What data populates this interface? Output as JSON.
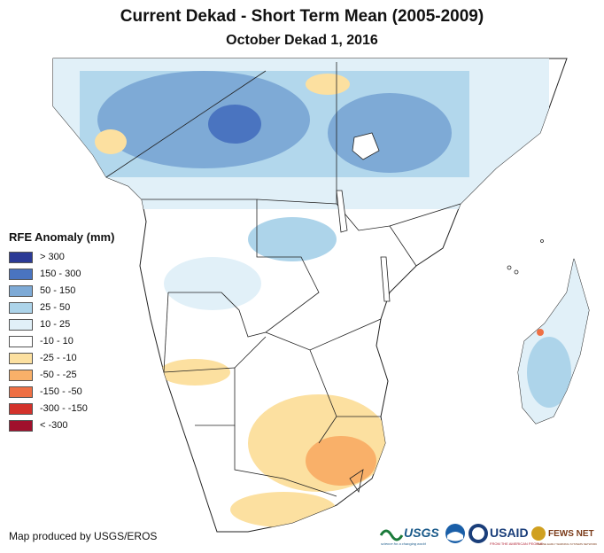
{
  "title": "Current Dekad - Short Term Mean (2005-2009)",
  "subtitle": "October Dekad 1, 2016",
  "legend": {
    "title": "RFE Anomaly (mm)",
    "items": [
      {
        "label": "> 300",
        "color": "#2b3a96"
      },
      {
        "label": "150 - 300",
        "color": "#4a74c0"
      },
      {
        "label": "50 - 150",
        "color": "#7eaad6"
      },
      {
        "label": "25 - 50",
        "color": "#add4ea"
      },
      {
        "label": "10 - 25",
        "color": "#e1f0f8"
      },
      {
        "label": "-10 - 10",
        "color": "#ffffff"
      },
      {
        "label": "-25 - -10",
        "color": "#fce0a0"
      },
      {
        "label": "-50 - -25",
        "color": "#f9b069"
      },
      {
        "label": "-150 - -50",
        "color": "#ef7044"
      },
      {
        "label": "-300 - -150",
        "color": "#d3322b"
      },
      {
        "label": "< -300",
        "color": "#a0102c"
      }
    ]
  },
  "credit": "Map produced by USGS/EROS",
  "logos": {
    "usgs": "USGS",
    "usgs_tagline": "science for a changing world",
    "usaid": "USAID",
    "usaid_tagline": "FROM THE AMERICAN PEOPLE",
    "fews": "FEWS NET",
    "fews_tagline": "FAMINE EARLY WARNING SYSTEMS NETWORK"
  }
}
